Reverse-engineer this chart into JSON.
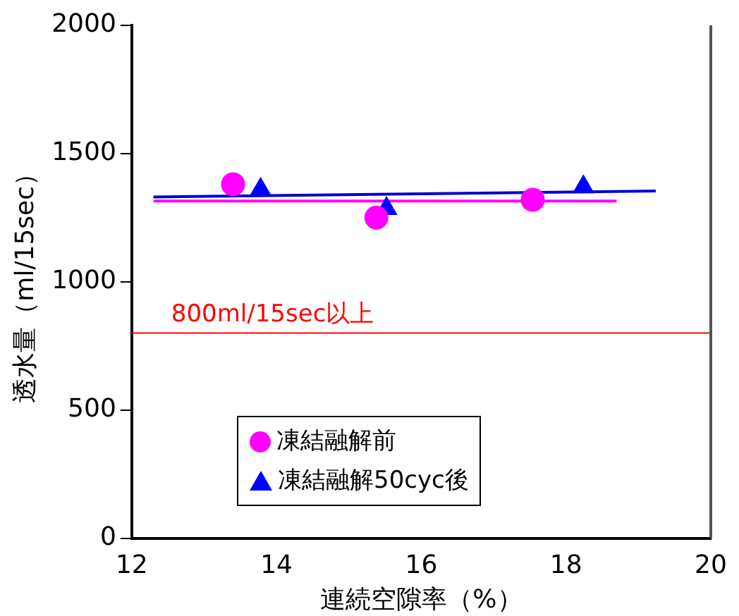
{
  "chart_data": {
    "type": "scatter",
    "xlabel": "連続空隙率（%）",
    "ylabel": "透水量（ml/15sec）",
    "xlim": [
      12,
      20
    ],
    "xticks": [
      12,
      14,
      16,
      18,
      20
    ],
    "ylim": [
      0,
      2000
    ],
    "yticks": [
      0,
      500,
      1000,
      1500,
      2000
    ],
    "grid": false,
    "legend": "bottom left",
    "series": [
      {
        "name": "凍結融解前",
        "color": "#ff00ff",
        "marker": "circle",
        "x": [
          13.4,
          15.38,
          17.54
        ],
        "values": [
          1380,
          1250,
          1320
        ]
      },
      {
        "name": "凍結融解50cyc後",
        "color": "#0000ff",
        "marker": "triangle",
        "x": [
          13.78,
          15.52,
          18.24
        ],
        "values": [
          1360,
          1285,
          1370
        ]
      },
      {
        "type": "line",
        "color": "#ff00ff",
        "marker": "none",
        "x": [
          12.3,
          18.7
        ],
        "values": [
          1315,
          1315
        ]
      },
      {
        "type": "line",
        "color": "#0000cc",
        "marker": "none",
        "x": [
          12.3,
          19.24
        ],
        "values": [
          1331,
          1354
        ]
      }
    ],
    "ref_lines": [
      {
        "axis": "y",
        "value": 800,
        "label": "800ml/15sec以上",
        "color": "#ff0000"
      }
    ]
  }
}
